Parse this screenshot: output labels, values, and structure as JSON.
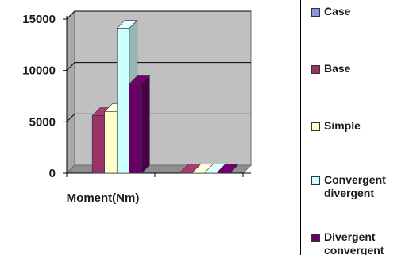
{
  "chart_data": {
    "type": "bar",
    "categories": [
      "Moment(Nm)",
      ""
    ],
    "series": [
      {
        "name": "Case",
        "values": [
          0,
          0
        ],
        "color": "#8f93e6"
      },
      {
        "name": "Base",
        "values": [
          5600,
          100
        ],
        "color": "#993366"
      },
      {
        "name": "Simple",
        "values": [
          6000,
          100
        ],
        "color": "#ffffcc"
      },
      {
        "name": "Convergent\ndivergent",
        "values": [
          14100,
          100
        ],
        "color": "#ccffff"
      },
      {
        "name": "Divergent\nconvergent",
        "values": [
          8700,
          100
        ],
        "color": "#660066"
      }
    ],
    "yticks": [
      0,
      5000,
      10000,
      15000
    ],
    "ylim": [
      0,
      15000
    ],
    "title": "",
    "xlabel": "",
    "ylabel": "",
    "grid": true,
    "legend_position": "right"
  }
}
